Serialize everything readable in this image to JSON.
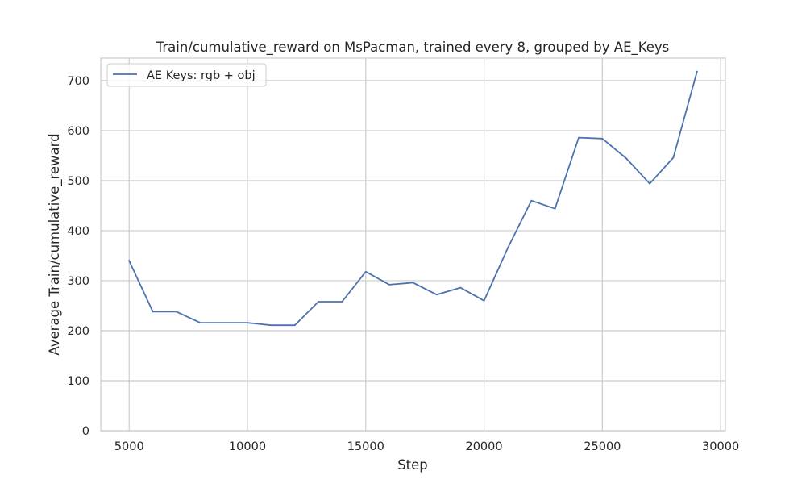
{
  "chart_data": {
    "type": "line",
    "title": "Train/cumulative_reward on MsPacman, trained every 8, grouped by AE_Keys",
    "xlabel": "Step",
    "ylabel": "Average Train/cumulative_reward",
    "xlim": [
      3800,
      30200
    ],
    "ylim": [
      0,
      745
    ],
    "xticks": [
      5000,
      10000,
      15000,
      20000,
      25000,
      30000
    ],
    "yticks": [
      0,
      100,
      200,
      300,
      400,
      500,
      600,
      700
    ],
    "grid": true,
    "legend_position": "top-left",
    "series": [
      {
        "name": "AE Keys: rgb + obj",
        "color": "#4c72b0",
        "x": [
          5000,
          6000,
          7000,
          8000,
          9000,
          10000,
          11000,
          12000,
          13000,
          14000,
          15000,
          16000,
          17000,
          18000,
          19000,
          20000,
          21000,
          22000,
          23000,
          24000,
          25000,
          26000,
          27000,
          28000,
          29000
        ],
        "y": [
          340,
          238,
          238,
          216,
          216,
          216,
          211,
          211,
          258,
          258,
          318,
          292,
          296,
          272,
          286,
          260,
          365,
          460,
          444,
          586,
          584,
          545,
          494,
          546,
          718
        ]
      }
    ]
  }
}
